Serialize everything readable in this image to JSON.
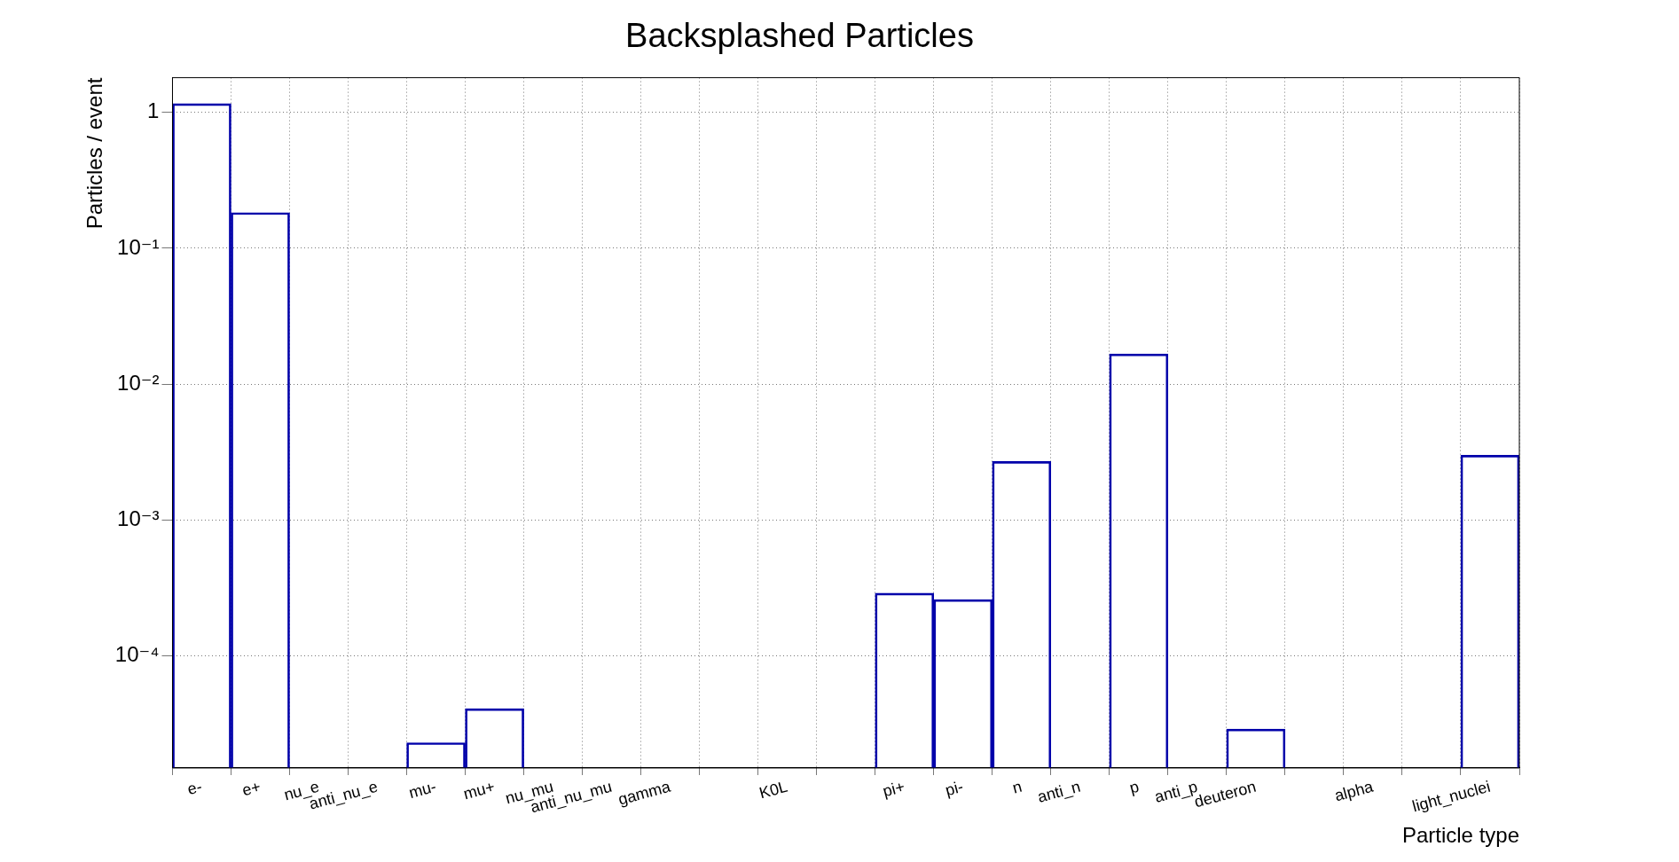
{
  "chart_data": {
    "type": "bar",
    "title": "Backsplashed Particles",
    "xlabel": "Particle type",
    "ylabel": "Particles / event",
    "categories": [
      "e-",
      "e+",
      "nu_e",
      "anti_nu_e",
      "mu-",
      "mu+",
      "nu_mu",
      "anti_nu_mu",
      "gamma",
      null,
      "K0L",
      null,
      "pi+",
      "pi-",
      "n",
      "anti_n",
      "p",
      "anti_p",
      "deuteron",
      null,
      "alpha",
      null,
      "light_nuclei"
    ],
    "values": [
      1.16,
      0.183,
      null,
      null,
      2.3e-05,
      4.1e-05,
      null,
      null,
      null,
      null,
      null,
      null,
      0.00029,
      0.00026,
      0.0027,
      null,
      0.0167,
      null,
      2.9e-05,
      null,
      null,
      null,
      0.003
    ],
    "color": "#0000aa",
    "ylim": [
      1.5e-05,
      1.8
    ],
    "yticks": [
      {
        "value": 0.0001,
        "label": "10⁻⁴"
      },
      {
        "value": 0.001,
        "label": "10⁻³"
      },
      {
        "value": 0.01,
        "label": "10⁻²"
      },
      {
        "value": 0.1,
        "label": "10⁻¹"
      },
      1
    ],
    "log": true,
    "grid": true
  }
}
